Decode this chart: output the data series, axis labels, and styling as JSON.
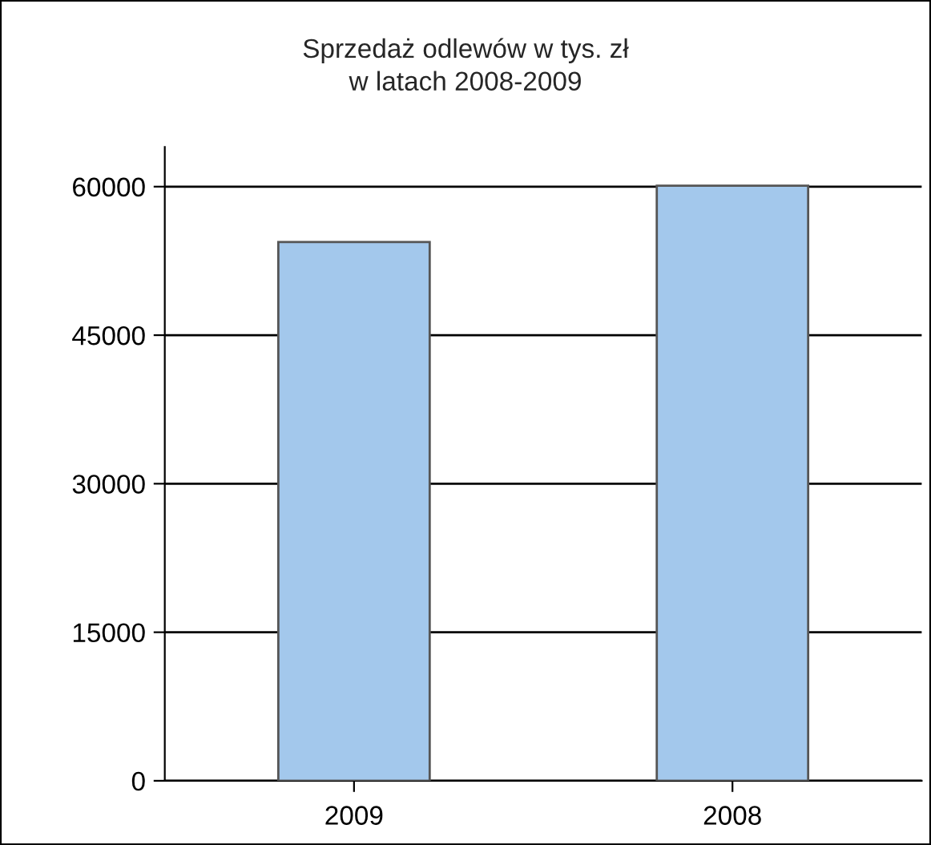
{
  "chart_data": {
    "type": "bar",
    "title": "Sprzedaż odlewów w tys. zł\nw latach 2008-2009",
    "categories": [
      "2009",
      "2008"
    ],
    "series": [
      {
        "color": "#a3c8ec",
        "values": [
          54400,
          60100
        ]
      }
    ],
    "ylim": [
      0,
      64000
    ],
    "yticks": [
      0,
      15000,
      30000,
      45000,
      60000
    ],
    "grid": "y",
    "legend": false
  }
}
